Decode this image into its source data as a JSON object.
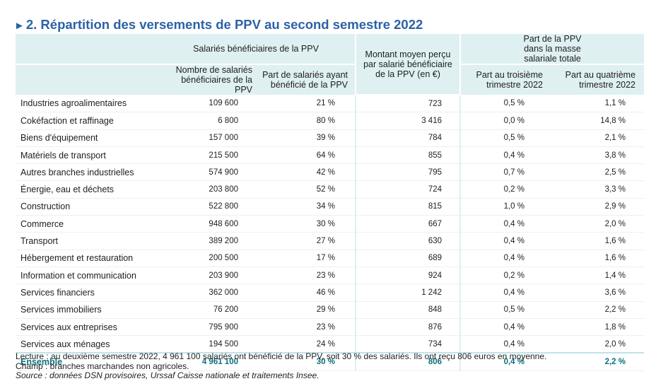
{
  "title": {
    "marker": "►",
    "text": "2. Répartition des versements de PPV au second semestre 2022"
  },
  "header": {
    "group_salaries": "Salariés bénéficiaires de la PPV",
    "group_montant": "Montant moyen perçu par salarié bénéficiaire de la PPV (en €)",
    "group_part": "Part de la PPV dans la masse salariale totale",
    "col_nombre": "Nombre de salariés bénéficiaires de la PPV",
    "col_part_salaries": "Part de salariés ayant bénéficié de la PPV",
    "col_t3": "Part au troisième trimestre 2022",
    "col_t4": "Part au quatrième trimestre 2022"
  },
  "rows": [
    {
      "label": "Industries agroalimentaires",
      "nombre": "109 600",
      "part": "21 %",
      "montant": "723",
      "t3": "0,5 %",
      "t4": "1,1 %"
    },
    {
      "label": "Cokéfaction et raffinage",
      "nombre": "6 800",
      "part": "80 %",
      "montant": "3 416",
      "t3": "0,0 %",
      "t4": "14,8 %"
    },
    {
      "label": "Biens d'équipement",
      "nombre": "157 000",
      "part": "39 %",
      "montant": "784",
      "t3": "0,5 %",
      "t4": "2,1 %"
    },
    {
      "label": "Matériels de transport",
      "nombre": "215 500",
      "part": "64 %",
      "montant": "855",
      "t3": "0,4 %",
      "t4": "3,8 %"
    },
    {
      "label": "Autres branches industrielles",
      "nombre": "574 900",
      "part": "42 %",
      "montant": "795",
      "t3": "0,7 %",
      "t4": "2,5 %"
    },
    {
      "label": "Énergie, eau et déchets",
      "nombre": "203 800",
      "part": "52 %",
      "montant": "724",
      "t3": "0,2 %",
      "t4": "3,3 %"
    },
    {
      "label": "Construction",
      "nombre": "522 800",
      "part": "34 %",
      "montant": "815",
      "t3": "1,0 %",
      "t4": "2,9 %"
    },
    {
      "label": "Commerce",
      "nombre": "948 600",
      "part": "30 %",
      "montant": "667",
      "t3": "0,4 %",
      "t4": "2,0 %"
    },
    {
      "label": "Transport",
      "nombre": "389 200",
      "part": "27 %",
      "montant": "630",
      "t3": "0,4 %",
      "t4": "1,6 %"
    },
    {
      "label": "Hébergement et restauration",
      "nombre": "200 500",
      "part": "17 %",
      "montant": "689",
      "t3": "0,4 %",
      "t4": "1,6 %"
    },
    {
      "label": "Information et communication",
      "nombre": "203 900",
      "part": "23 %",
      "montant": "924",
      "t3": "0,2 %",
      "t4": "1,4 %"
    },
    {
      "label": "Services financiers",
      "nombre": "362 000",
      "part": "46 %",
      "montant": "1 242",
      "t3": "0,4 %",
      "t4": "3,6 %"
    },
    {
      "label": "Services immobiliers",
      "nombre": "76 200",
      "part": "29 %",
      "montant": "848",
      "t3": "0,5 %",
      "t4": "2,2 %"
    },
    {
      "label": "Services aux entreprises",
      "nombre": "795 900",
      "part": "23 %",
      "montant": "876",
      "t3": "0,4 %",
      "t4": "1,8 %"
    },
    {
      "label": "Services aux ménages",
      "nombre": "194 500",
      "part": "24 %",
      "montant": "734",
      "t3": "0,4 %",
      "t4": "2,0 %"
    }
  ],
  "total": {
    "label": "Ensemble",
    "nombre": "4 961 100",
    "part": "30 %",
    "montant": "806",
    "t3": "0,4 %",
    "t4": "2,2 %"
  },
  "notes": {
    "lecture": "Lecture : au deuxième semestre 2022, 4 961 100 salariés ont bénéficié de la PPV, soit 30 % des salariés. Ils ont reçu 806 euros en moyenne.",
    "champ": "Champ : branches marchandes non agricoles.",
    "source": "Source : données DSN provisoires, Urssaf Caisse nationale et traitements Insee."
  },
  "colors": {
    "title": "#2c62a6",
    "header_bg": "#dff0f2",
    "total_text": "#0b7080"
  }
}
